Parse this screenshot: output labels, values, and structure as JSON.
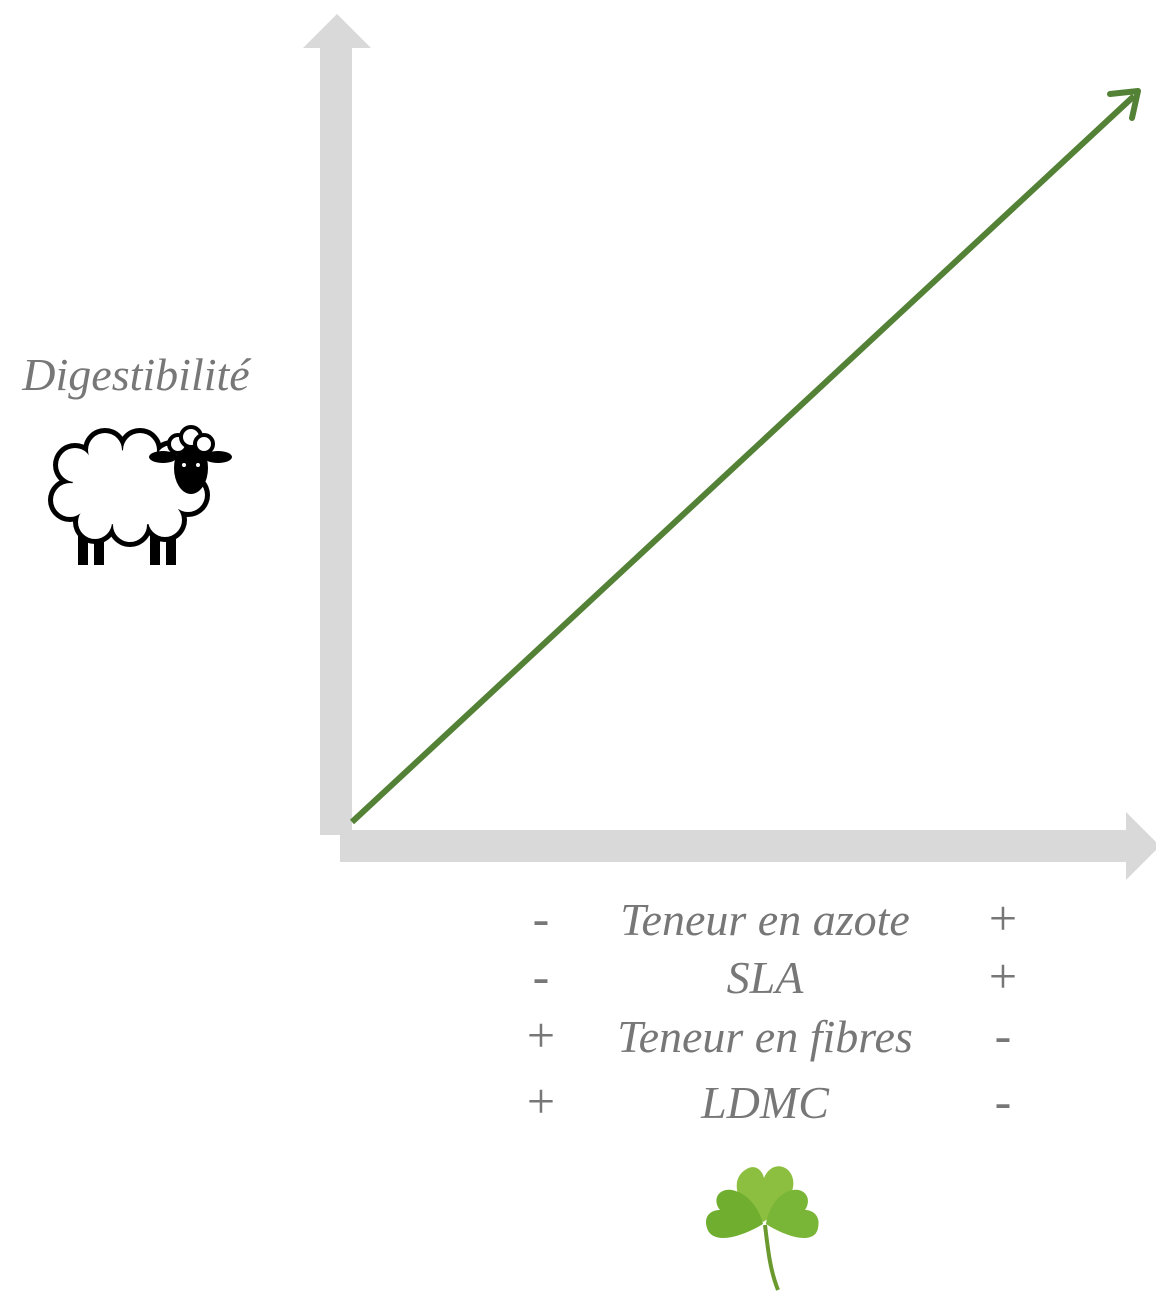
{
  "y_axis_label": "Digestibilité",
  "x_axis_rows": [
    {
      "left": "-",
      "label": "Teneur en azote",
      "right": "+"
    },
    {
      "left": "-",
      "label": "SLA",
      "right": "+"
    },
    {
      "left": "+",
      "label": "Teneur en fibres",
      "right": "-"
    },
    {
      "left": "+",
      "label": "LDMC",
      "right": "-"
    }
  ]
}
